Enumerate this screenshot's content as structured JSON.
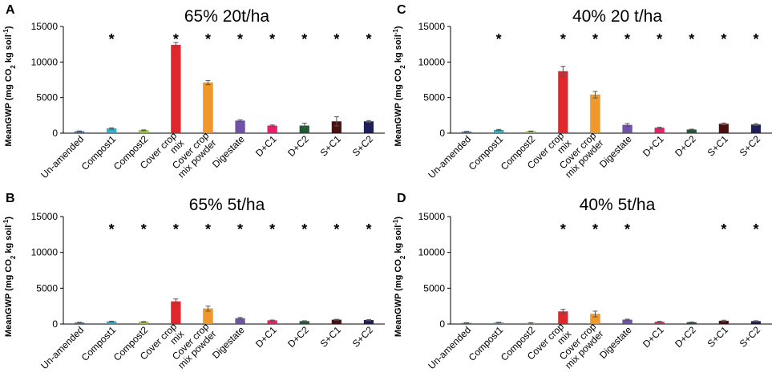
{
  "figure": {
    "description_free": true
  },
  "chart_data": [
    {
      "panel": "A",
      "type": "bar",
      "title": "65% 20t/ha",
      "ylabel": "MeanGWP (mg CO2 kg soil-1)",
      "ylim": [
        0,
        15000
      ],
      "yticks": [
        "0",
        "5000",
        "10000",
        "15000"
      ],
      "categories": [
        [
          "Un-amended"
        ],
        [
          "Compost1"
        ],
        [
          "Compost2"
        ],
        [
          "Cover crop",
          "mix"
        ],
        [
          "Cover crop",
          "mix powder"
        ],
        [
          "Digestate"
        ],
        [
          "D+C1"
        ],
        [
          "D+C2"
        ],
        [
          "S+C1"
        ],
        [
          "S+C2"
        ]
      ],
      "values": [
        250,
        650,
        400,
        12400,
        7100,
        1750,
        1050,
        1050,
        1650,
        1650
      ],
      "errors": [
        60,
        80,
        60,
        350,
        300,
        120,
        100,
        350,
        650,
        120
      ],
      "stars": [
        false,
        true,
        false,
        true,
        true,
        true,
        true,
        true,
        true,
        true
      ]
    },
    {
      "panel": "B",
      "type": "bar",
      "title": "65% 5t/ha",
      "ylabel": "MeanGWP (mg CO2 kg soil-1)",
      "ylim": [
        0,
        15000
      ],
      "yticks": [
        "0",
        "5000",
        "10000",
        "15000"
      ],
      "categories": [
        [
          "Un-amended"
        ],
        [
          "Compost1"
        ],
        [
          "Compost2"
        ],
        [
          "Cover crop",
          "mix"
        ],
        [
          "Cover crop",
          "mix powder"
        ],
        [
          "Digestate"
        ],
        [
          "D+C1"
        ],
        [
          "D+C2"
        ],
        [
          "S+C1"
        ],
        [
          "S+C2"
        ]
      ],
      "values": [
        200,
        350,
        300,
        3150,
        2150,
        800,
        500,
        400,
        600,
        550
      ],
      "errors": [
        50,
        50,
        50,
        350,
        350,
        120,
        60,
        60,
        60,
        80
      ],
      "stars": [
        false,
        true,
        true,
        true,
        true,
        true,
        true,
        true,
        true,
        true
      ]
    },
    {
      "panel": "C",
      "type": "bar",
      "title": "40% 20 t/ha",
      "ylabel": "MeanGWP (mg CO2 kg soil-1)",
      "ylim": [
        0,
        15000
      ],
      "yticks": [
        "0",
        "5000",
        "10000",
        "15000"
      ],
      "categories": [
        [
          "Un-amended"
        ],
        [
          "Compost1"
        ],
        [
          "Compost2"
        ],
        [
          "Cover crop",
          "mix"
        ],
        [
          "Cover crop",
          "mix powder"
        ],
        [
          "Digestate"
        ],
        [
          "D+C1"
        ],
        [
          "D+C2"
        ],
        [
          "S+C1"
        ],
        [
          "S+C2"
        ]
      ],
      "values": [
        200,
        450,
        250,
        8700,
        5400,
        1150,
        750,
        500,
        1300,
        1200
      ],
      "errors": [
        50,
        80,
        50,
        700,
        450,
        200,
        80,
        60,
        120,
        120
      ],
      "stars": [
        false,
        true,
        false,
        true,
        true,
        true,
        true,
        true,
        true,
        true
      ]
    },
    {
      "panel": "D",
      "type": "bar",
      "title": "40% 5t/ha",
      "ylabel": "MeanGWP (mg CO2 kg soil-1)",
      "ylim": [
        0,
        15000
      ],
      "yticks": [
        "0",
        "5000",
        "10000",
        "15000"
      ],
      "categories": [
        [
          "Un-amended"
        ],
        [
          "Compost1"
        ],
        [
          "Compost2"
        ],
        [
          "Cover crop",
          "mix"
        ],
        [
          "Cover crop",
          "mix powder"
        ],
        [
          "Digestate"
        ],
        [
          "D+C1"
        ],
        [
          "D+C2"
        ],
        [
          "S+C1"
        ],
        [
          "S+C2"
        ]
      ],
      "values": [
        150,
        200,
        150,
        1750,
        1400,
        600,
        300,
        250,
        450,
        400
      ],
      "errors": [
        50,
        50,
        40,
        300,
        400,
        80,
        80,
        40,
        80,
        60
      ],
      "stars": [
        false,
        false,
        false,
        true,
        true,
        true,
        false,
        false,
        true,
        true
      ]
    }
  ],
  "bar_colors": [
    "#4472c4",
    "#31b0c8",
    "#9acd32",
    "#e0282c",
    "#f0982a",
    "#7052a8",
    "#e8206a",
    "#1d5a30",
    "#4a1010",
    "#1e1e5c"
  ],
  "errorbar_color": "#555555",
  "star_symbol": "*"
}
